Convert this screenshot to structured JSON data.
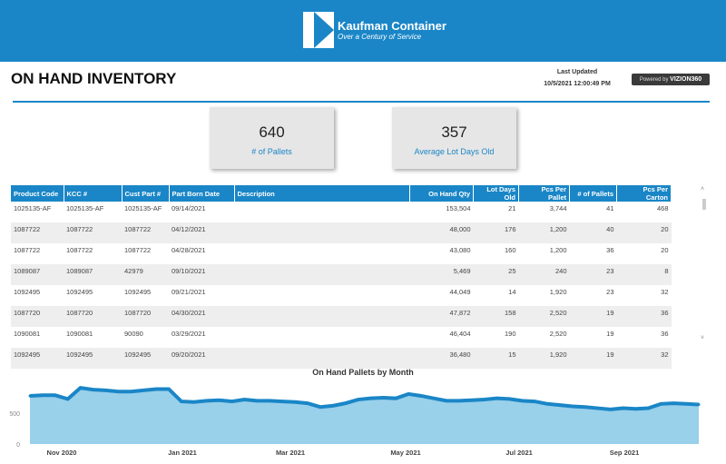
{
  "header": {
    "company": "Kaufman Container",
    "tagline": "Over a Century of Service"
  },
  "page_title": "ON HAND INVENTORY",
  "last_updated": {
    "label": "Last Updated",
    "value": "10/5/2021 12:00:49 PM"
  },
  "powered_by": {
    "prefix": "Powered by",
    "brand": "VIZION360"
  },
  "cards": [
    {
      "value": "640",
      "label": "# of Pallets"
    },
    {
      "value": "357",
      "label": "Average Lot Days Old"
    }
  ],
  "table": {
    "columns": [
      "Product Code",
      "KCC #",
      "Cust Part #",
      "Part Born Date",
      "Description",
      "On Hand Qty",
      "Lot Days Old",
      "Pcs Per Pallet",
      "# of Pallets",
      "Pcs Per Carton"
    ],
    "rows": [
      [
        "1025135-AF",
        "1025135-AF",
        "1025135-AF",
        "09/14/2021",
        "",
        "153,504",
        "21",
        "3,744",
        "41",
        "468"
      ],
      [
        "1087722",
        "1087722",
        "1087722",
        "04/12/2021",
        "",
        "48,000",
        "176",
        "1,200",
        "40",
        "20"
      ],
      [
        "1087722",
        "1087722",
        "1087722",
        "04/28/2021",
        "",
        "43,080",
        "160",
        "1,200",
        "36",
        "20"
      ],
      [
        "1089087",
        "1089087",
        "42979",
        "09/10/2021",
        "",
        "5,469",
        "25",
        "240",
        "23",
        "8"
      ],
      [
        "1092495",
        "1092495",
        "1092495",
        "09/21/2021",
        "",
        "44,049",
        "14",
        "1,920",
        "23",
        "32"
      ],
      [
        "1087720",
        "1087720",
        "1087720",
        "04/30/2021",
        "",
        "47,872",
        "158",
        "2,520",
        "19",
        "36"
      ],
      [
        "1090081",
        "1090081",
        "90090",
        "03/29/2021",
        "",
        "46,404",
        "190",
        "2,520",
        "19",
        "36"
      ],
      [
        "1092495",
        "1092495",
        "1092495",
        "09/20/2021",
        "",
        "36,480",
        "15",
        "1,920",
        "19",
        "32"
      ]
    ]
  },
  "chart_data": {
    "type": "area",
    "title": "On Hand Pallets by Month",
    "x_ticks": [
      "Nov 2020",
      "Jan 2021",
      "Mar 2021",
      "May 2021",
      "Jul 2021",
      "Sep 2021"
    ],
    "y_ticks": [
      "0",
      "500"
    ],
    "ylim": [
      0,
      1100
    ],
    "start_date": "2020-10-15",
    "step_days": 7,
    "values": [
      780,
      790,
      790,
      730,
      910,
      880,
      870,
      850,
      850,
      870,
      890,
      890,
      690,
      680,
      700,
      710,
      690,
      720,
      700,
      700,
      690,
      680,
      660,
      600,
      620,
      660,
      720,
      740,
      750,
      740,
      810,
      780,
      740,
      700,
      700,
      710,
      720,
      740,
      730,
      700,
      690,
      650,
      630,
      610,
      600,
      580,
      560,
      580,
      570,
      580,
      650,
      660,
      650,
      640
    ],
    "colors": {
      "line": "#1a86c7",
      "fill": "#99d0ea"
    }
  }
}
